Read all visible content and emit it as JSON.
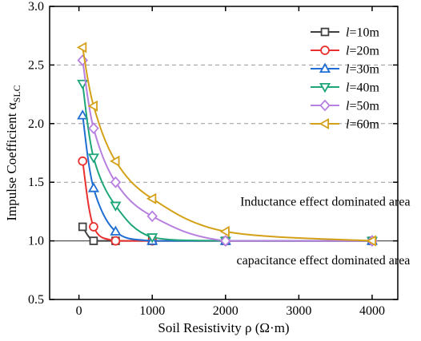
{
  "chart_data": {
    "type": "line",
    "xlabel": "Soil Resistivity ρ (Ω·m)",
    "ylabel": "Impulse Coefficient α",
    "ylabel_sub": "SLC",
    "xlim": [
      -400,
      4350
    ],
    "ylim": [
      0.5,
      3.0
    ],
    "xticks": [
      0,
      1000,
      2000,
      3000,
      4000
    ],
    "yticks": [
      0.5,
      1.0,
      1.5,
      2.0,
      2.5,
      3.0
    ],
    "xtick_labels": [
      "0",
      "1000",
      "2000",
      "3000",
      "4000"
    ],
    "ytick_labels": [
      "0.5",
      "1.0",
      "1.5",
      "2.0",
      "2.5",
      "3.0"
    ],
    "reference_line": 1.0,
    "dashed_gridlines": [
      1.5,
      2.0,
      2.5
    ],
    "legend_position": "top-right",
    "annotations": [
      {
        "text": "Inductance effect dominated area",
        "x": 2200,
        "y": 1.3
      },
      {
        "text": "capacitance effect dominated area",
        "x": 2150,
        "y": 0.8
      }
    ],
    "series": [
      {
        "name_prefix": "l",
        "name_suffix": "=10m",
        "color": "#404040",
        "marker": "square",
        "x": [
          50,
          200,
          500,
          1000,
          2000,
          4000
        ],
        "y": [
          1.12,
          1.0,
          1.0,
          1.0,
          1.0,
          1.0
        ]
      },
      {
        "name_prefix": "l",
        "name_suffix": "=20m",
        "color": "#e8312f",
        "marker": "circle",
        "x": [
          50,
          200,
          500,
          1000,
          2000,
          4000
        ],
        "y": [
          1.68,
          1.12,
          1.0,
          1.0,
          1.0,
          1.0
        ]
      },
      {
        "name_prefix": "l",
        "name_suffix": "=30m",
        "color": "#1f6ed4",
        "marker": "triangle-up",
        "x": [
          50,
          200,
          500,
          1000,
          2000,
          4000
        ],
        "y": [
          2.07,
          1.45,
          1.08,
          1.0,
          1.0,
          1.0
        ]
      },
      {
        "name_prefix": "l",
        "name_suffix": "=40m",
        "color": "#1ea67a",
        "marker": "triangle-down",
        "x": [
          50,
          200,
          500,
          1000,
          2000,
          4000
        ],
        "y": [
          2.34,
          1.71,
          1.3,
          1.03,
          1.0,
          1.0
        ]
      },
      {
        "name_prefix": "l",
        "name_suffix": "=50m",
        "color": "#b77fe0",
        "marker": "diamond",
        "x": [
          50,
          200,
          500,
          1000,
          2000,
          4000
        ],
        "y": [
          2.54,
          1.96,
          1.5,
          1.21,
          1.0,
          1.0
        ]
      },
      {
        "name_prefix": "l",
        "name_suffix": "=60m",
        "color": "#d4a017",
        "marker": "triangle-left",
        "x": [
          50,
          200,
          500,
          1000,
          2000,
          4000
        ],
        "y": [
          2.65,
          2.15,
          1.68,
          1.36,
          1.08,
          1.0
        ]
      }
    ]
  }
}
